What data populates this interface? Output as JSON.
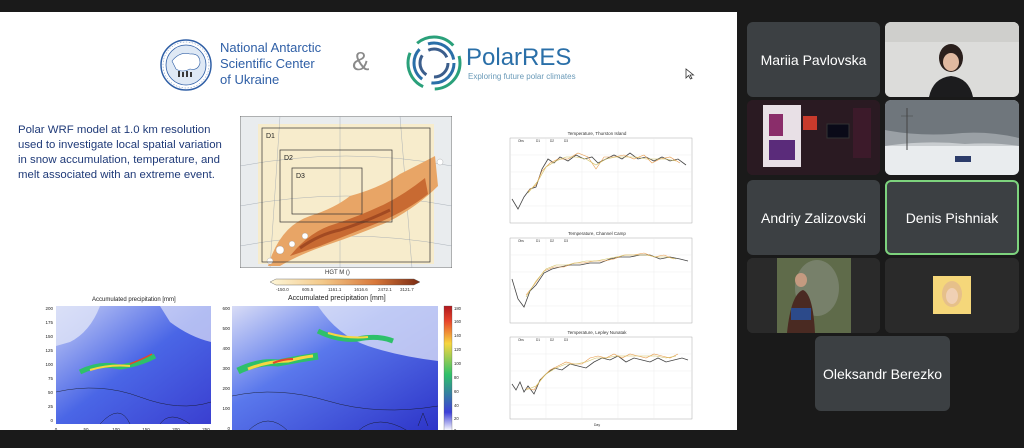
{
  "slide": {
    "ncu_title": [
      "National Antarctic",
      "Scientific Center",
      "of Ukraine"
    ],
    "ampersand": "&",
    "polarres_name": "PolarRES",
    "polarres_tagline": "Exploring future polar climates",
    "description": [
      "Polar WRF model at 1.0 km resolution",
      "used to investigate local spatial variation",
      "in snow accumulation, temperature, and",
      "melt associated with an extreme event."
    ],
    "domain_map": {
      "domains": [
        "D1",
        "D2",
        "D3"
      ],
      "colorbar_title": "HGT M ()",
      "colorbar_ticks": [
        "-150.0",
        "605.5",
        "1161.1",
        "1616.6",
        "2472.1",
        "3121.7"
      ]
    },
    "precip_maps": [
      {
        "title": "Accumulated precipitation [mm]",
        "y_ticks": [
          "200",
          "175",
          "150",
          "125",
          "100",
          "75",
          "50",
          "25",
          "0"
        ],
        "x_ticks": [
          "0",
          "50",
          "100",
          "150",
          "200",
          "250"
        ]
      },
      {
        "title": "Accumulated precipitation [mm]",
        "y_ticks": [
          "600",
          "500",
          "400",
          "300",
          "200",
          "100",
          "0"
        ],
        "x_ticks": [
          "0",
          "200",
          "400",
          "600",
          "800",
          "1000",
          "1200"
        ],
        "colorbar_ticks": [
          "180",
          "160",
          "140",
          "120",
          "100",
          "80",
          "60",
          "40",
          "20",
          "0"
        ]
      }
    ],
    "temp_charts": [
      {
        "title": "Temperature, Thurston Island",
        "legend": [
          "Obs",
          "D1",
          "D2",
          "D3"
        ]
      },
      {
        "title": "Temperature, Channel Camp",
        "legend": [
          "Obs",
          "D1",
          "D2",
          "D3"
        ]
      },
      {
        "title": "Temperature, Lepley Nunatak",
        "legend": [
          "Obs",
          "D1",
          "D2",
          "D3"
        ],
        "xlabel": "Day"
      }
    ]
  },
  "participants": [
    {
      "name": "Mariia Pavlovska",
      "has_video": false
    },
    {
      "name": "",
      "has_video": true
    },
    {
      "name": "",
      "has_video": true
    },
    {
      "name": "",
      "has_video": true
    },
    {
      "name": "Andriy Zalizovski",
      "has_video": false
    },
    {
      "name": "Denis Pishniak",
      "has_video": false,
      "active_speaker": true
    },
    {
      "name": "",
      "has_video": true
    },
    {
      "name": "",
      "has_video": true
    },
    {
      "name": "Oleksandr Berezko",
      "has_video": false
    }
  ],
  "colors": {
    "background": "#1a1a1a",
    "tile": "#3c4043",
    "active_speaker_border": "#7dd37d",
    "ncu_blue": "#2f5fa6",
    "polarres_blue": "#2a6fa8"
  }
}
